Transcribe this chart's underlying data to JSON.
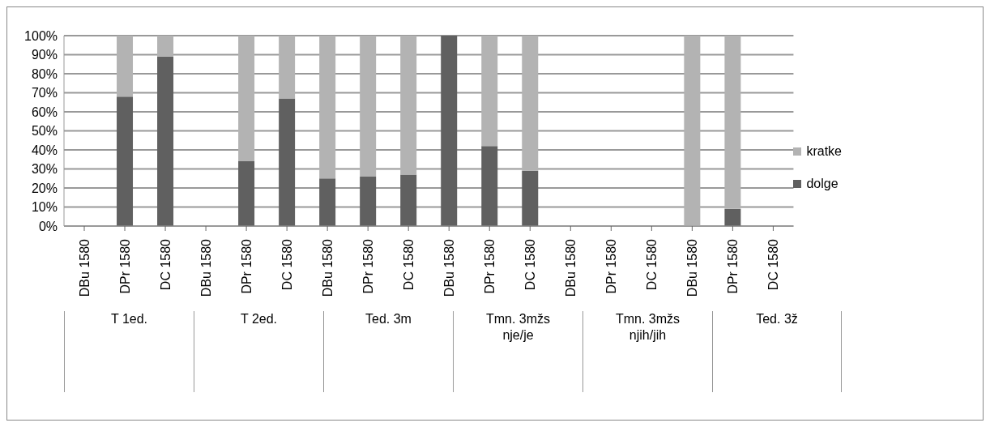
{
  "chart_data": {
    "type": "bar",
    "stacked": true,
    "categories": [
      "DBu 1580",
      "DPr 1580",
      "DC 1580",
      "DBu 1580",
      "DPr 1580",
      "DC 1580",
      "DBu 1580",
      "DPr 1580",
      "DC 1580",
      "DBu 1580",
      "DPr 1580",
      "DC 1580",
      "DBu 1580",
      "DPr 1580",
      "DC 1580",
      "DBu 1580",
      "DPr 1580",
      "DC 1580"
    ],
    "series": [
      {
        "name": "dolge",
        "color": "#606060",
        "values": [
          0,
          68,
          89,
          0,
          34,
          67,
          25,
          26,
          27,
          100,
          42,
          29,
          0,
          0,
          0,
          0,
          9,
          0
        ]
      },
      {
        "name": "kratke",
        "color": "#b3b3b3",
        "values": [
          0,
          32,
          11,
          0,
          66,
          33,
          75,
          74,
          73,
          0,
          58,
          71,
          0,
          0,
          0,
          100,
          91,
          0
        ]
      }
    ],
    "annotations": [
      "T 1ed.",
      "T 2ed.",
      "Ted. 3m",
      "Tmn. 3mžs nje/je",
      "Tmn. 3mžs njih/jih",
      "Ted. 3ž"
    ],
    "ylim": [
      0,
      100
    ],
    "yticks": [
      {
        "value": 0,
        "label": "0%"
      },
      {
        "value": 10,
        "label": "10%"
      },
      {
        "value": 20,
        "label": "20%"
      },
      {
        "value": 30,
        "label": "30%"
      },
      {
        "value": 40,
        "label": "40%"
      },
      {
        "value": 50,
        "label": "50%"
      },
      {
        "value": 60,
        "label": "60%"
      },
      {
        "value": 70,
        "label": "70%"
      },
      {
        "value": 80,
        "label": "80%"
      },
      {
        "value": 90,
        "label": "90%"
      },
      {
        "value": 100,
        "label": "100%"
      }
    ],
    "grid": "y",
    "legend": "right"
  }
}
